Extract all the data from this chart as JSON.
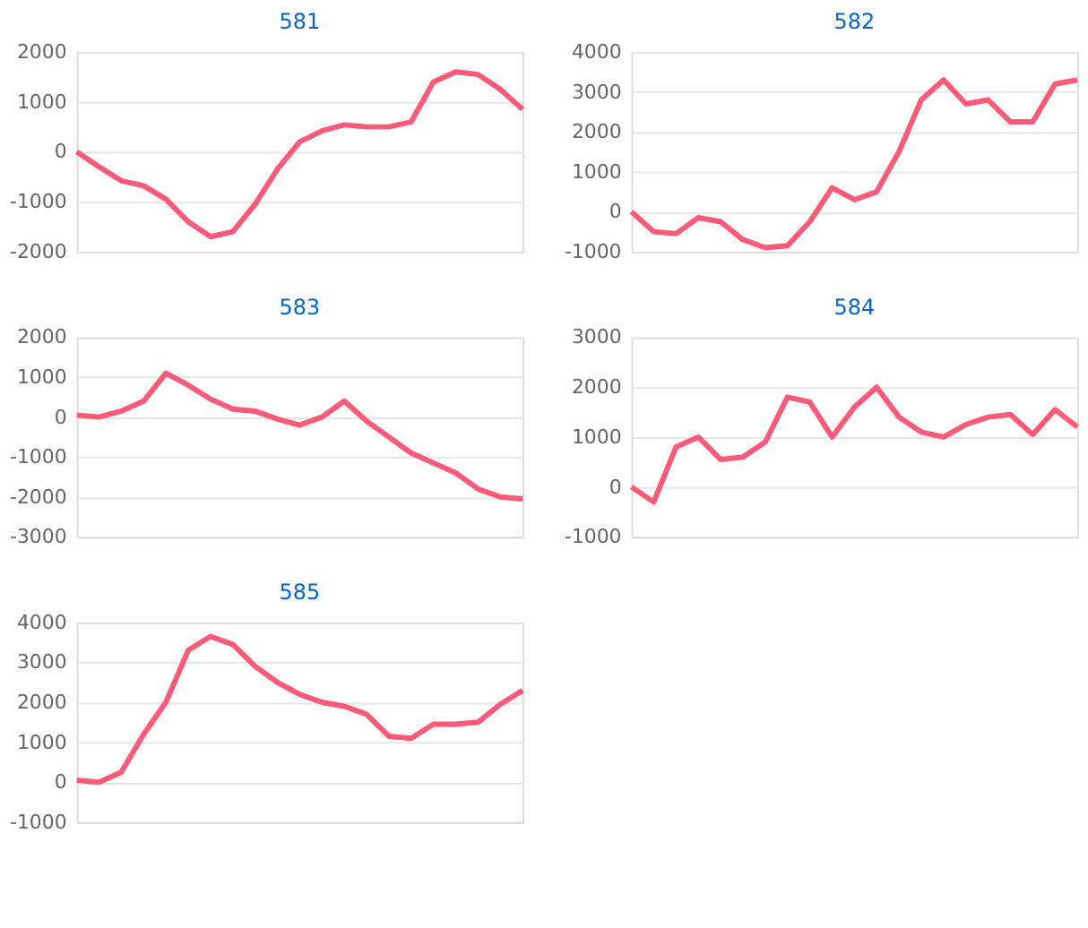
{
  "chart_data": [
    {
      "type": "line",
      "title": "581",
      "categories": [
        null,
        null,
        null,
        null,
        null,
        null,
        null,
        null,
        null,
        null,
        null,
        null,
        null,
        null,
        null,
        null,
        null,
        null,
        null,
        null,
        null
      ],
      "series": [
        {
          "color": "#ff5a78",
          "values": [
            0,
            -300,
            -580,
            -680,
            -950,
            -1400,
            -1700,
            -1600,
            -1050,
            -350,
            200,
            420,
            540,
            500,
            500,
            600,
            1400,
            1600,
            1550,
            1250,
            850
          ]
        }
      ],
      "ylim": [
        -2000,
        2000
      ],
      "yticks": [
        -2000,
        -1000,
        0,
        1000,
        2000
      ],
      "grid": "y",
      "tick_labels": "y",
      "marker": "none",
      "line_style": "solid"
    },
    {
      "type": "line",
      "title": "582",
      "categories": [
        null,
        null,
        null,
        null,
        null,
        null,
        null,
        null,
        null,
        null,
        null,
        null,
        null,
        null,
        null,
        null,
        null,
        null,
        null,
        null,
        null
      ],
      "series": [
        {
          "color": "#ff5a78",
          "values": [
            0,
            -500,
            -550,
            -150,
            -250,
            -700,
            -900,
            -850,
            -250,
            600,
            300,
            500,
            1500,
            2800,
            3300,
            2700,
            2800,
            2250,
            2250,
            3200,
            3300
          ]
        }
      ],
      "ylim": [
        -1000,
        4000
      ],
      "yticks": [
        -1000,
        0,
        1000,
        2000,
        3000,
        4000
      ],
      "grid": "y",
      "tick_labels": "y",
      "marker": "none",
      "line_style": "solid"
    },
    {
      "type": "line",
      "title": "583",
      "categories": [
        null,
        null,
        null,
        null,
        null,
        null,
        null,
        null,
        null,
        null,
        null,
        null,
        null,
        null,
        null,
        null,
        null,
        null,
        null,
        null,
        null
      ],
      "series": [
        {
          "color": "#ff5a78",
          "values": [
            50,
            0,
            150,
            400,
            1100,
            800,
            450,
            200,
            150,
            -50,
            -200,
            0,
            400,
            -100,
            -500,
            -900,
            -1150,
            -1400,
            -1800,
            -2000,
            -2050
          ]
        }
      ],
      "ylim": [
        -3000,
        2000
      ],
      "yticks": [
        -3000,
        -2000,
        -1000,
        0,
        1000,
        2000
      ],
      "grid": "y",
      "tick_labels": "y",
      "marker": "none",
      "line_style": "solid"
    },
    {
      "type": "line",
      "title": "584",
      "categories": [
        null,
        null,
        null,
        null,
        null,
        null,
        null,
        null,
        null,
        null,
        null,
        null,
        null,
        null,
        null,
        null,
        null,
        null,
        null,
        null,
        null
      ],
      "series": [
        {
          "color": "#ff5a78",
          "values": [
            0,
            -300,
            800,
            1000,
            550,
            600,
            900,
            1800,
            1700,
            1000,
            1600,
            2000,
            1400,
            1100,
            1000,
            1250,
            1400,
            1450,
            1050,
            1550,
            1200
          ]
        }
      ],
      "ylim": [
        -1000,
        3000
      ],
      "yticks": [
        -1000,
        0,
        1000,
        2000,
        3000
      ],
      "grid": "y",
      "tick_labels": "y",
      "marker": "none",
      "line_style": "solid"
    },
    {
      "type": "line",
      "title": "585",
      "categories": [
        null,
        null,
        null,
        null,
        null,
        null,
        null,
        null,
        null,
        null,
        null,
        null,
        null,
        null,
        null,
        null,
        null,
        null,
        null,
        null,
        null
      ],
      "series": [
        {
          "color": "#ff5a78",
          "values": [
            50,
            0,
            250,
            1200,
            2000,
            3300,
            3650,
            3450,
            2900,
            2500,
            2200,
            2000,
            1900,
            1700,
            1150,
            1100,
            1450,
            1450,
            1500,
            1950,
            2300
          ]
        }
      ],
      "ylim": [
        -1000,
        4000
      ],
      "yticks": [
        -1000,
        0,
        1000,
        2000,
        3000,
        4000
      ],
      "grid": "y",
      "tick_labels": "y",
      "marker": "none",
      "line_style": "solid"
    }
  ]
}
